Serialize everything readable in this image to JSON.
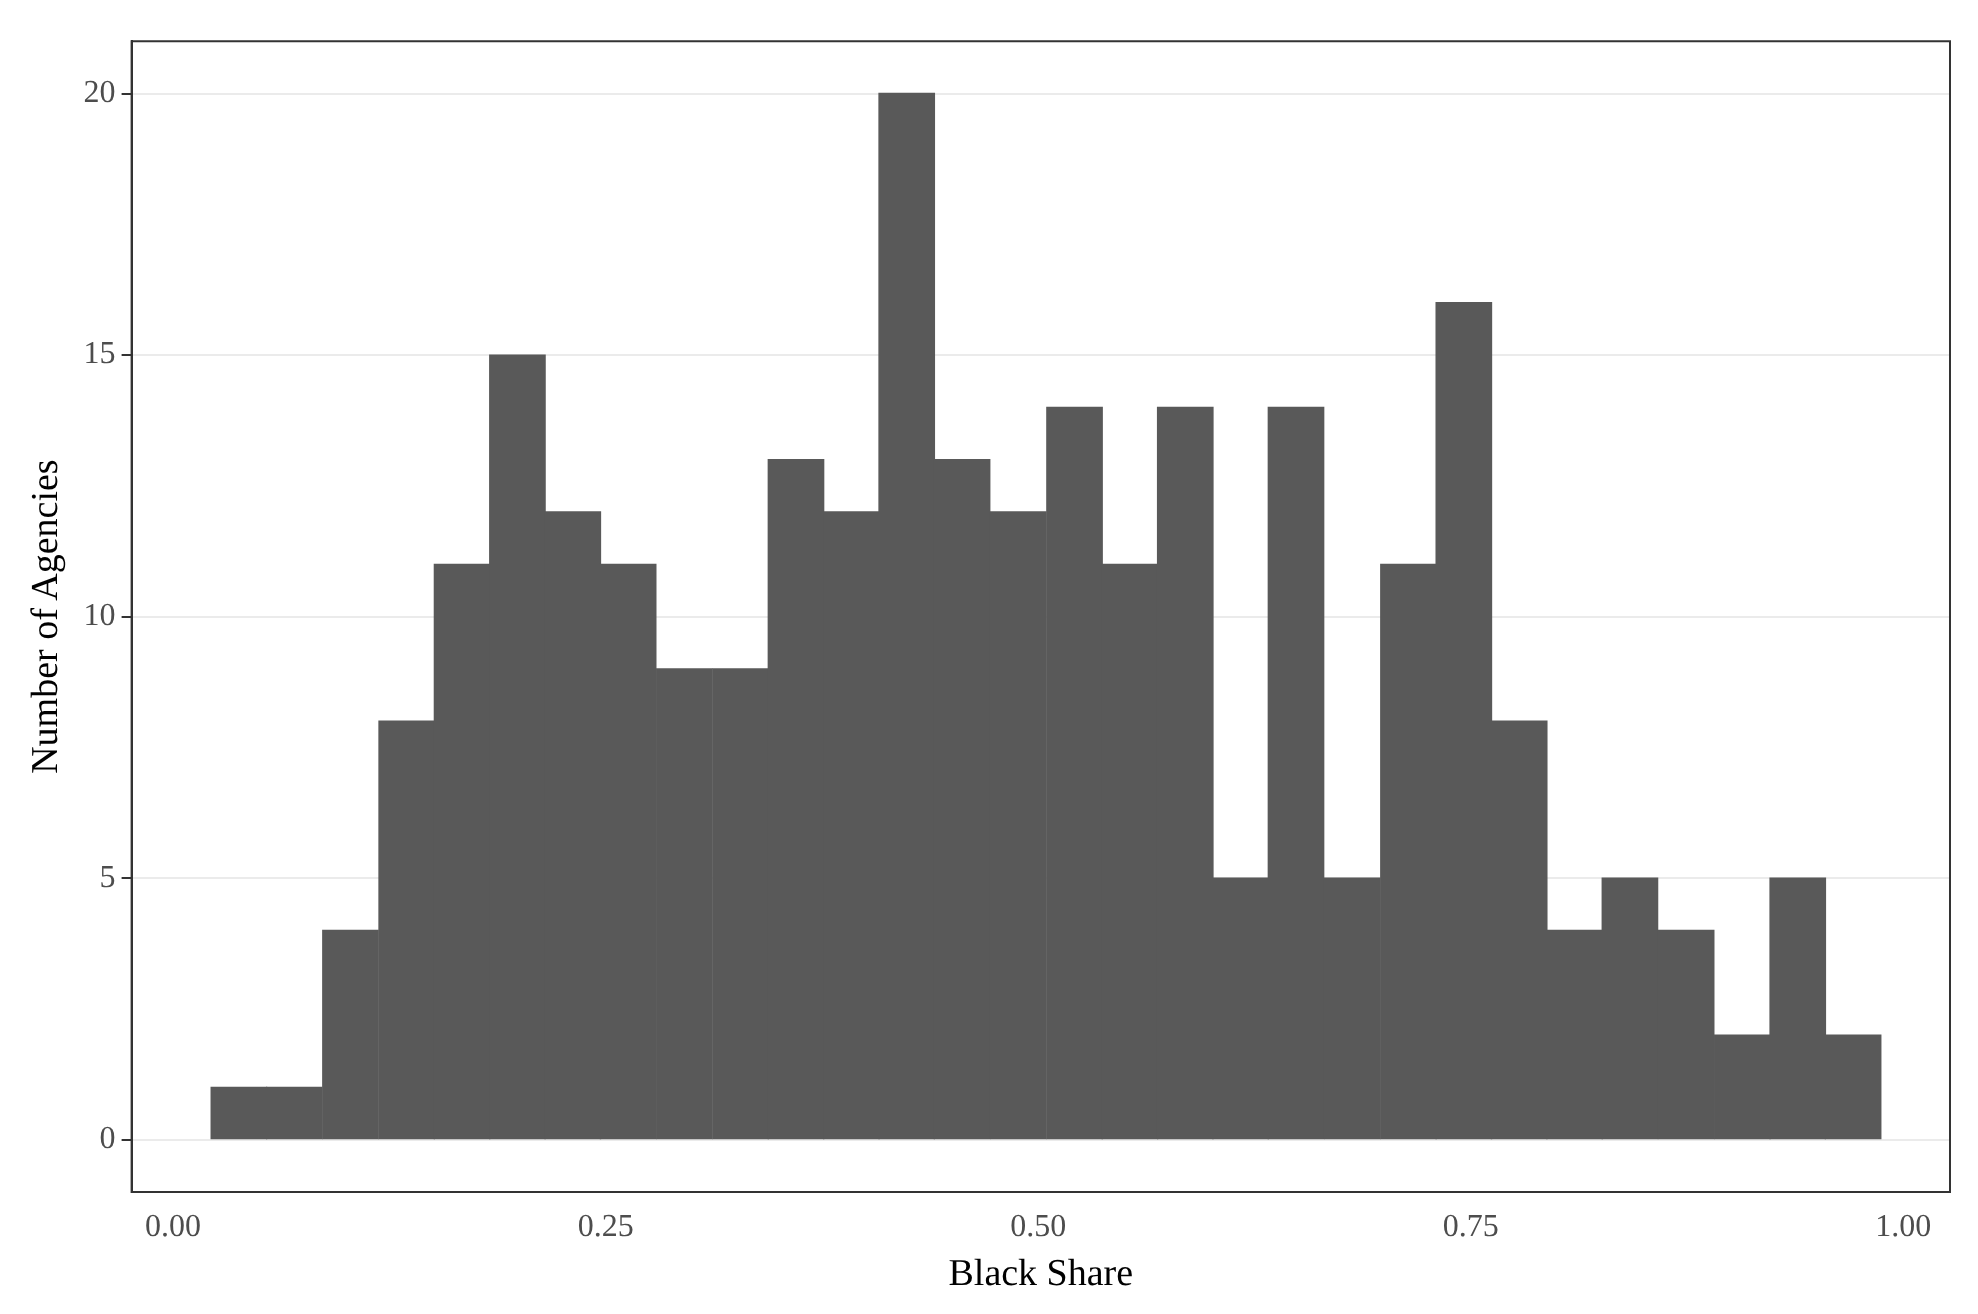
{
  "chart_data": {
    "type": "histogram",
    "xlabel": "Black Share",
    "ylabel": "Number of Agencies",
    "color": "#595959",
    "bins": [
      0.022,
      0.054,
      0.086,
      0.119,
      0.151,
      0.183,
      0.215,
      0.247,
      0.279,
      0.312,
      0.344,
      0.376,
      0.408,
      0.44,
      0.472,
      0.505,
      0.537,
      0.569,
      0.601,
      0.633,
      0.665,
      0.698,
      0.73,
      0.762,
      0.794,
      0.826,
      0.858,
      0.891,
      0.923,
      0.955,
      0.987
    ],
    "values": [
      1,
      1,
      4,
      8,
      11,
      15,
      12,
      11,
      9,
      9,
      13,
      12,
      20,
      13,
      12,
      14,
      11,
      14,
      5,
      14,
      5,
      11,
      16,
      8,
      4,
      5,
      4,
      2,
      5,
      2
    ],
    "xlim": [
      -0.024,
      1.027
    ],
    "ylim": [
      -1,
      21
    ],
    "xticks": [
      {
        "value": 0,
        "label": "0.00"
      },
      {
        "value": 0.25,
        "label": "0.25"
      },
      {
        "value": 0.5,
        "label": "0.50"
      },
      {
        "value": 0.75,
        "label": "0.75"
      },
      {
        "value": 1,
        "label": "1.00"
      }
    ],
    "yticks": [
      0,
      5,
      10,
      15,
      20
    ],
    "grid": "y",
    "legend": false
  }
}
